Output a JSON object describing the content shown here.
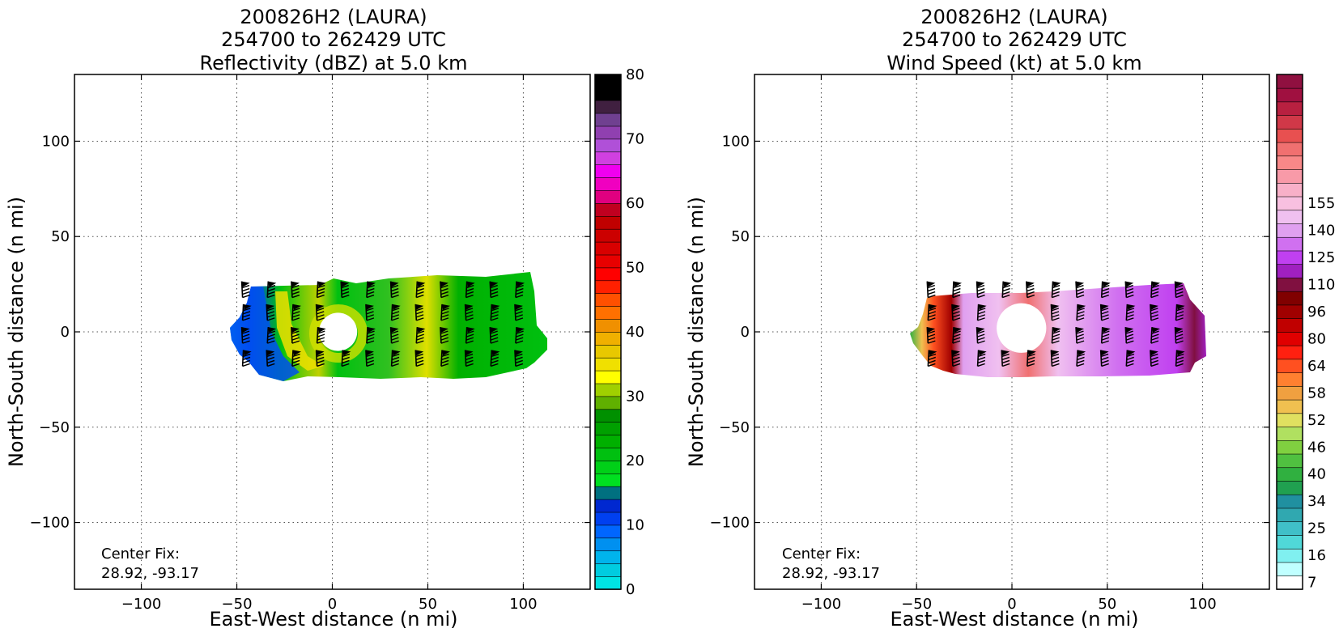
{
  "chart_data": [
    {
      "type": "heatmap",
      "title_lines": [
        "200826H2 (LAURA)",
        "254700 to 262429 UTC",
        "Reflectivity (dBZ) at 5.0 km"
      ],
      "xlabel": "East-West distance (n mi)",
      "ylabel": "North-South distance (n mi)",
      "xlim": [
        -135,
        135
      ],
      "ylim": [
        -135,
        135
      ],
      "xticks": [
        -100,
        -50,
        0,
        50,
        100
      ],
      "yticks": [
        -100,
        -50,
        0,
        50,
        100
      ],
      "grid": true,
      "annotation_lines": [
        "Center Fix:",
        "28.92, -93.17"
      ],
      "data_extent": {
        "x": [
          -55,
          112
        ],
        "y": [
          -27,
          31
        ]
      },
      "eye_center": [
        3,
        0
      ],
      "eye_radius": 10,
      "colorbar": {
        "min": 0,
        "max": 80,
        "step": 2.5,
        "tick_values": [
          0,
          10,
          20,
          30,
          40,
          50,
          60,
          70,
          80
        ],
        "tick_labels": [
          "0",
          "10",
          "20",
          "30",
          "40",
          "50",
          "60",
          "70",
          "80"
        ],
        "colors": [
          "#00e5e5",
          "#00cce0",
          "#00b4ec",
          "#0090f0",
          "#0066ff",
          "#0040f0",
          "#0028d0",
          "#007080",
          "#00e020",
          "#00d018",
          "#00c010",
          "#00b000",
          "#00a000",
          "#009000",
          "#60b000",
          "#a0d000",
          "#ffff00",
          "#f0e000",
          "#e8c800",
          "#f0b000",
          "#f09000",
          "#ff7000",
          "#ff5000",
          "#ff2000",
          "#ff0000",
          "#e80000",
          "#d80000",
          "#cc0000",
          "#c00000",
          "#c00020",
          "#e00080",
          "#f000c0",
          "#f000f0",
          "#d040e0",
          "#b050d8",
          "#9040b0",
          "#704090",
          "#402040",
          "#000000",
          "#000000"
        ]
      }
    },
    {
      "type": "heatmap",
      "title_lines": [
        "200826H2 (LAURA)",
        "254700 to 262429 UTC",
        "Wind Speed (kt) at 5.0 km"
      ],
      "xlabel": "East-West distance (n mi)",
      "ylabel": "North-South distance (n mi)",
      "xlim": [
        -135,
        135
      ],
      "ylim": [
        -135,
        135
      ],
      "xticks": [
        -100,
        -50,
        0,
        50,
        100
      ],
      "yticks": [
        -100,
        -50,
        0,
        50,
        100
      ],
      "grid": true,
      "annotation_lines": [
        "Center Fix:",
        "28.92, -93.17"
      ],
      "data_extent": {
        "x": [
          -52,
          100
        ],
        "y": [
          -23,
          26
        ]
      },
      "eye_center": [
        5,
        2
      ],
      "eye_radius": 13,
      "colorbar": {
        "tick_labels": [
          "7",
          "16",
          "25",
          "34",
          "40",
          "46",
          "52",
          "58",
          "64",
          "80",
          "96",
          "110",
          "125",
          "140",
          "155"
        ],
        "tick_bin_index": [
          0,
          2,
          4,
          6,
          8,
          10,
          12,
          14,
          16,
          18,
          20,
          22,
          24,
          26,
          28
        ],
        "colors": [
          "#ffffff",
          "#c0ffff",
          "#80f0f0",
          "#50d8d8",
          "#40c0c8",
          "#30a8b0",
          "#2090a0",
          "#20a050",
          "#30b040",
          "#50c040",
          "#80d040",
          "#b0e060",
          "#e0e060",
          "#f0c050",
          "#f0a040",
          "#ff8030",
          "#ff5020",
          "#ff2010",
          "#e00000",
          "#c00000",
          "#a00000",
          "#800000",
          "#801040",
          "#a020c0",
          "#c040f0",
          "#d070f0",
          "#e0a0f0",
          "#f0c0f0",
          "#f8c0e0",
          "#f8b0c8",
          "#f89aa8",
          "#f88888",
          "#f07070",
          "#e85050",
          "#d03848",
          "#b82040",
          "#a01040",
          "#901040"
        ]
      }
    }
  ]
}
